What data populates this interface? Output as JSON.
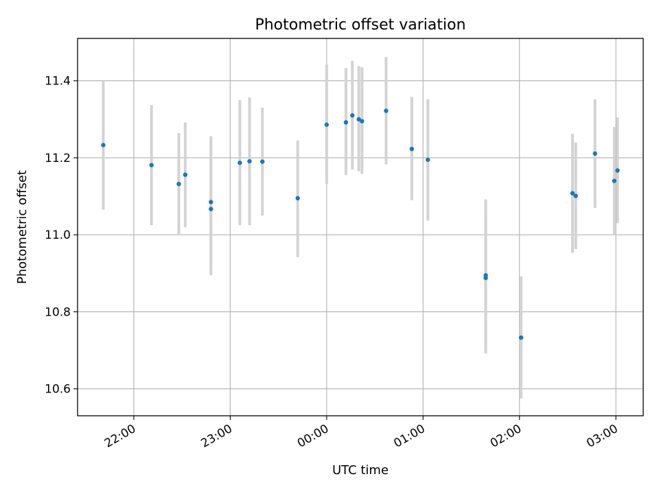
{
  "chart_data": {
    "type": "scatter",
    "title": "Photometric offset variation",
    "xlabel": "UTC time",
    "ylabel": "Photometric offset",
    "x_axis": {
      "unit": "UTC clock time",
      "ticks": [
        "22:00",
        "23:00",
        "00:00",
        "01:00",
        "02:00",
        "03:00"
      ],
      "range": [
        "21:25",
        "03:17"
      ]
    },
    "y_axis": {
      "ticks": [
        "10.6",
        "10.8",
        "11.0",
        "11.2",
        "11.4"
      ],
      "ylim": [
        10.53,
        11.51
      ]
    },
    "grid": true,
    "colors": {
      "point": "#1f77b4",
      "errorbar": "#d3d3d3",
      "grid": "#b0b0b0"
    },
    "points": [
      {
        "time": "21:41",
        "y": 11.233,
        "err_low": 11.065,
        "err_high": 11.4
      },
      {
        "time": "22:11",
        "y": 11.181,
        "err_low": 11.025,
        "err_high": 11.337
      },
      {
        "time": "22:28",
        "y": 11.132,
        "err_low": 11.0,
        "err_high": 11.264
      },
      {
        "time": "22:32",
        "y": 11.156,
        "err_low": 11.02,
        "err_high": 11.292
      },
      {
        "time": "22:48",
        "y": 11.085,
        "err_low": 10.925,
        "err_high": 11.245
      },
      {
        "time": "22:48",
        "y": 11.067,
        "err_low": 10.895,
        "err_high": 11.256
      },
      {
        "time": "23:06",
        "y": 11.187,
        "err_low": 11.025,
        "err_high": 11.35
      },
      {
        "time": "23:12",
        "y": 11.191,
        "err_low": 11.025,
        "err_high": 11.357
      },
      {
        "time": "23:20",
        "y": 11.19,
        "err_low": 11.05,
        "err_high": 11.33
      },
      {
        "time": "23:42",
        "y": 11.095,
        "err_low": 10.942,
        "err_high": 11.245
      },
      {
        "time": "00:00",
        "y": 11.286,
        "err_low": 11.132,
        "err_high": 11.442
      },
      {
        "time": "00:12",
        "y": 11.292,
        "err_low": 11.155,
        "err_high": 11.433
      },
      {
        "time": "00:16",
        "y": 11.31,
        "err_low": 11.17,
        "err_high": 11.452
      },
      {
        "time": "00:20",
        "y": 11.3,
        "err_low": 11.165,
        "err_high": 11.438
      },
      {
        "time": "00:22",
        "y": 11.295,
        "err_low": 11.158,
        "err_high": 11.435
      },
      {
        "time": "00:37",
        "y": 11.322,
        "err_low": 11.183,
        "err_high": 11.462
      },
      {
        "time": "00:53",
        "y": 11.223,
        "err_low": 11.09,
        "err_high": 11.358
      },
      {
        "time": "01:03",
        "y": 11.195,
        "err_low": 11.037,
        "err_high": 11.352
      },
      {
        "time": "01:39",
        "y": 10.895,
        "err_low": 10.698,
        "err_high": 11.092
      },
      {
        "time": "01:39",
        "y": 10.888,
        "err_low": 10.692,
        "err_high": 11.05
      },
      {
        "time": "02:01",
        "y": 10.733,
        "err_low": 10.575,
        "err_high": 10.892
      },
      {
        "time": "02:33",
        "y": 11.108,
        "err_low": 10.953,
        "err_high": 11.262
      },
      {
        "time": "02:35",
        "y": 11.101,
        "err_low": 10.963,
        "err_high": 11.24
      },
      {
        "time": "02:47",
        "y": 11.211,
        "err_low": 11.07,
        "err_high": 11.352
      },
      {
        "time": "02:59",
        "y": 11.14,
        "err_low": 11.0,
        "err_high": 11.28
      },
      {
        "time": "03:01",
        "y": 11.167,
        "err_low": 11.03,
        "err_high": 11.305
      }
    ]
  }
}
